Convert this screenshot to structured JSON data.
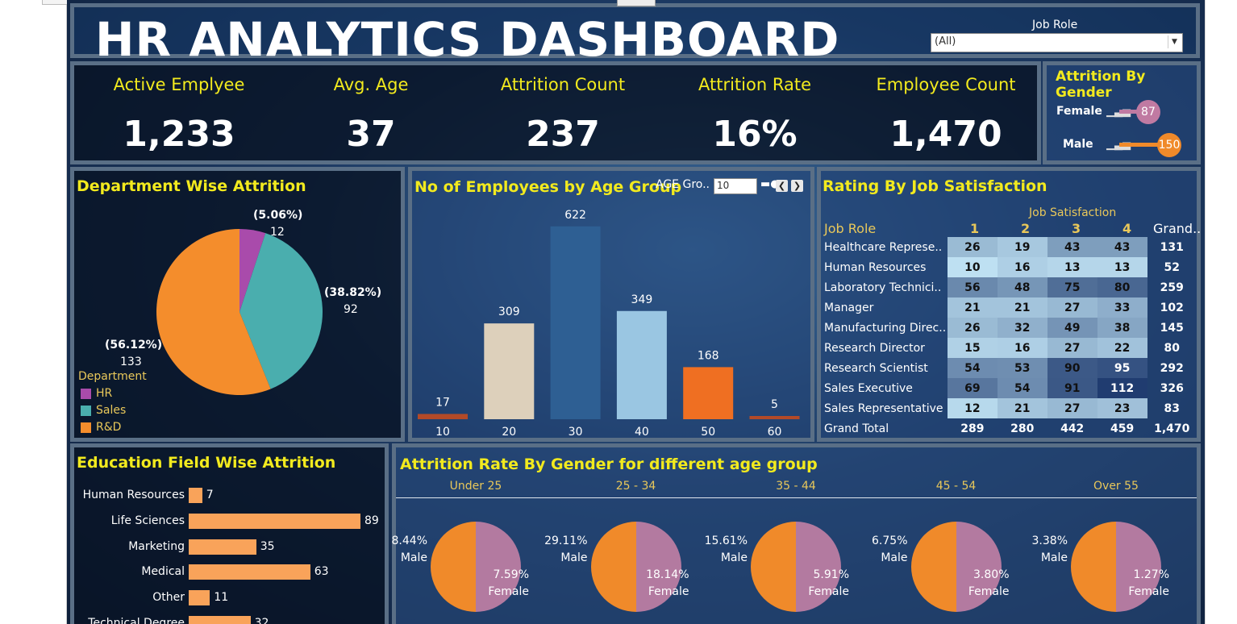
{
  "header": {
    "title": "HR  ANALYTICS DASHBOARD",
    "filter_label": "Job Role",
    "filter_value": "(All)"
  },
  "kpis": [
    {
      "label": "Active Emplyee",
      "value": "1,233"
    },
    {
      "label": "Avg. Age",
      "value": "37"
    },
    {
      "label": "Attrition Count",
      "value": "237"
    },
    {
      "label": "Attrition Rate",
      "value": "16%"
    },
    {
      "label": "Employee Count",
      "value": "1,470"
    }
  ],
  "gender_panel": {
    "title": "Attrition By Gender",
    "rows": [
      {
        "label": "Female",
        "value": "87",
        "num": 87,
        "color": "#c07aa2"
      },
      {
        "label": "Male",
        "value": "150",
        "num": 150,
        "color": "#f08a2a"
      }
    ]
  },
  "dept_panel": {
    "title": "Department Wise Attrition",
    "legend_title": "Department",
    "slices": [
      {
        "name": "HR",
        "pct": "(5.06%)",
        "count": "12",
        "value": 12,
        "color": "#a94bab"
      },
      {
        "name": "Sales",
        "pct": "(38.82%)",
        "count": "92",
        "value": 92,
        "color": "#4aaeae"
      },
      {
        "name": "R&D",
        "pct": "(56.12%)",
        "count": "133",
        "value": 133,
        "color": "#f48d2c"
      }
    ]
  },
  "age_panel": {
    "title": "No of Employees by Age Group",
    "control_label": "AGE Gro..",
    "control_value": "10"
  },
  "satisfaction_panel": {
    "title": "Rating By Job Satisfaction",
    "col_group": "Job Satisfaction",
    "row_header": "Job Role",
    "columns": [
      "1",
      "2",
      "3",
      "4"
    ],
    "grand_label": "Grand..",
    "rows": [
      {
        "role": "Healthcare Represe..",
        "v": [
          "26",
          "19",
          "43",
          "43"
        ],
        "total": "131"
      },
      {
        "role": "Human Resources",
        "v": [
          "10",
          "16",
          "13",
          "13"
        ],
        "total": "52"
      },
      {
        "role": "Laboratory Technici..",
        "v": [
          "56",
          "48",
          "75",
          "80"
        ],
        "total": "259"
      },
      {
        "role": "Manager",
        "v": [
          "21",
          "21",
          "27",
          "33"
        ],
        "total": "102"
      },
      {
        "role": "Manufacturing Direc..",
        "v": [
          "26",
          "32",
          "49",
          "38"
        ],
        "total": "145"
      },
      {
        "role": "Research Director",
        "v": [
          "15",
          "16",
          "27",
          "22"
        ],
        "total": "80"
      },
      {
        "role": "Research Scientist",
        "v": [
          "54",
          "53",
          "90",
          "95"
        ],
        "total": "292"
      },
      {
        "role": "Sales Executive",
        "v": [
          "69",
          "54",
          "91",
          "112"
        ],
        "total": "326"
      },
      {
        "role": "Sales Representative",
        "v": [
          "12",
          "21",
          "27",
          "23"
        ],
        "total": "83"
      }
    ],
    "grand_total": {
      "role": "Grand Total",
      "v": [
        "289",
        "280",
        "442",
        "459"
      ],
      "total": "1,470"
    }
  },
  "education_panel": {
    "title": "Education Field Wise Attrition"
  },
  "gender_age_panel": {
    "title": "Attrition Rate By Gender for different age group"
  },
  "chart_data": [
    {
      "type": "bar",
      "title": "No of Employees by Age Group",
      "categories": [
        "10",
        "20",
        "30",
        "40",
        "50",
        "60"
      ],
      "values": [
        17,
        309,
        622,
        349,
        168,
        5
      ],
      "colors": [
        "#b34a28",
        "#ddd0bb",
        "#2e5f93",
        "#9ac6e2",
        "#ef6f22",
        "#b34a28"
      ],
      "ylim": [
        0,
        650
      ]
    },
    {
      "type": "bar",
      "orientation": "horizontal",
      "title": "Education Field Wise Attrition",
      "categories": [
        "Human Resources",
        "Life Sciences",
        "Marketing",
        "Medical",
        "Other",
        "Technical Degree"
      ],
      "values": [
        7,
        89,
        35,
        63,
        11,
        32
      ],
      "color": "#f9a35a"
    },
    {
      "type": "pie",
      "title": "Attrition Rate By Gender for different age group",
      "groups": [
        {
          "label": "Under 25",
          "male": "8.44%",
          "female": "7.59%",
          "male_val": 8.44,
          "female_val": 7.59
        },
        {
          "label": "25 - 34",
          "male": "29.11%",
          "female": "18.14%",
          "male_val": 29.11,
          "female_val": 18.14
        },
        {
          "label": "35 - 44",
          "male": "15.61%",
          "female": "5.91%",
          "male_val": 15.61,
          "female_val": 5.91
        },
        {
          "label": "45 - 54",
          "male": "6.75%",
          "female": "3.80%",
          "male_val": 6.75,
          "female_val": 3.8
        },
        {
          "label": "Over 55",
          "male": "3.38%",
          "female": "1.27%",
          "male_val": 3.38,
          "female_val": 1.27
        }
      ],
      "male_label": "Male",
      "female_label": "Female",
      "colors": {
        "male": "#f08a2a",
        "female": "#b37aa0"
      }
    }
  ]
}
